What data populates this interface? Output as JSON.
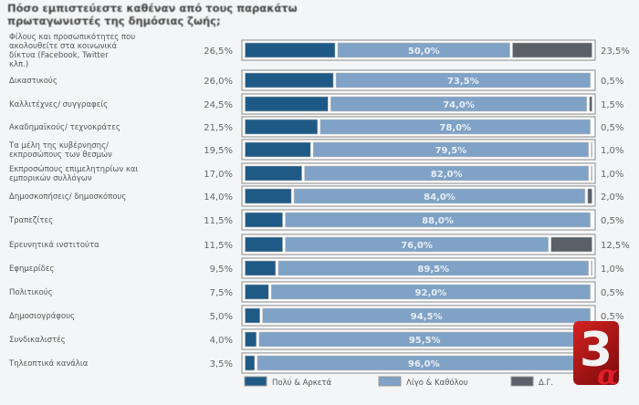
{
  "chart_data": {
    "type": "bar",
    "stacked": true,
    "orientation": "horizontal",
    "title": "Πόσο εμπιστεύεστε καθέναν από τους παρακάτω πρωταγωνιστές της δημόσιας ζωής;",
    "categories": [
      "Φίλους και προσωπικότητες που ακολουθείτε στα κοινωνικά δίκτυα (Facebook, Twitter κλπ.)",
      "Δικαστικούς",
      "Καλλιτέχνες/ συγγραφείς",
      "Ακαδημαϊκούς/ τεχνοκράτες",
      "Τα μέλη της κυβέρνησης/ εκπροσώπους των θεσμών",
      "Εκπροσώπους επιμελητηρίων και εμπορικών συλλόγων",
      "Δημοσκοπήσεις/ δημοσκόπους",
      "Τραπεζίτες",
      "Ερευνητικά ινστιτούτα",
      "Εφημερίδες",
      "Πολιτικούς",
      "Δημοσιογράφους",
      "Συνδικαλιστές",
      "Τηλεοπτικά κανάλια"
    ],
    "series": [
      {
        "name": "Πολύ & Αρκετά",
        "color": "#1f5a86",
        "values": [
          26.5,
          26.0,
          24.5,
          21.5,
          19.5,
          17.0,
          14.0,
          11.5,
          11.5,
          9.5,
          7.5,
          5.0,
          4.0,
          3.5
        ]
      },
      {
        "name": "Λίγο & Καθόλου",
        "color": "#7fa2c6",
        "values": [
          50.0,
          73.5,
          74.0,
          78.0,
          79.5,
          82.0,
          84.0,
          88.0,
          76.0,
          89.5,
          92.0,
          94.5,
          95.5,
          96.0
        ]
      },
      {
        "name": "Δ.Γ.",
        "color": "#5b6068",
        "values": [
          23.5,
          0.5,
          1.5,
          0.5,
          1.0,
          1.0,
          2.0,
          0.5,
          12.5,
          1.0,
          0.5,
          0.5,
          null,
          null
        ]
      }
    ],
    "unit": "%",
    "xlim": [
      0,
      100
    ],
    "legend": "bottom"
  },
  "logo": {
    "text": "3",
    "sub": "α"
  }
}
